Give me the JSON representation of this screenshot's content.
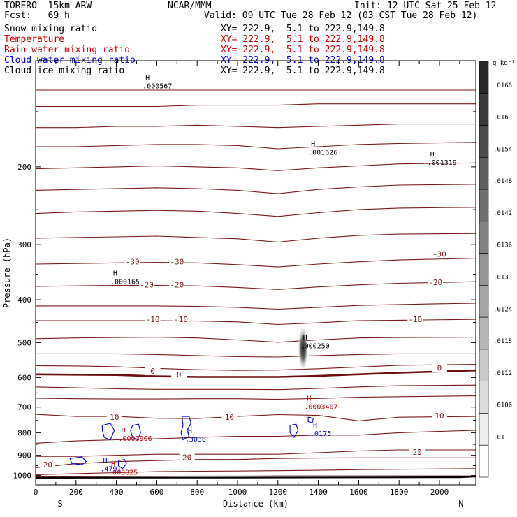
{
  "header": {
    "model": "TORERO  15km ARW",
    "org": "NCAR/MMM",
    "init": "Init: 12 UTC Sat 25 Feb 12",
    "fcst": "Fcst:   69 h",
    "valid": "Valid: 09 UTC Tue 28 Feb 12 (03 CST Tue 28 Feb 12)"
  },
  "legend": [
    {
      "label": "Snow mixing ratio",
      "color": "#000000",
      "xy": "XY= 222.9,  5.1 to 222.9,149.8"
    },
    {
      "label": "Temperature",
      "color": "#cc0000",
      "xy": "XY= 222.9,  5.1 to 222.9,149.8"
    },
    {
      "label": "Rain water mixing ratio",
      "color": "#cc0000",
      "xy": "XY= 222.9,  5.1 to 222.9,149.8"
    },
    {
      "label": "Cloud water mixing ratio",
      "color": "#0000cc",
      "xy": "XY= 222.9,  5.1 to 222.9,149.8"
    },
    {
      "label": "Cloud ice mixing ratio",
      "color": "#000000",
      "xy": "XY= 222.9,  5.1 to 222.9,149.8"
    }
  ],
  "colors": {
    "isotherm": "#7a1a1a",
    "isotherm_bold": "#6b0f0f",
    "rain": "#cc0000",
    "cloud_water": "#0000cc",
    "ground": "#000000"
  },
  "chart_data": {
    "type": "cross-section",
    "xlabel": "Distance (km)",
    "ylabel": "Pressure (hPa)",
    "xlim": [
      0,
      2180
    ],
    "ylim": [
      1050,
      115
    ],
    "y_scale": "log",
    "x_ticks": [
      0,
      200,
      400,
      600,
      800,
      1000,
      1200,
      1400,
      1600,
      1800,
      2000
    ],
    "y_ticks": [
      200,
      300,
      400,
      500,
      600,
      700,
      800,
      900,
      1000
    ],
    "x_end_labels": {
      "left": "S",
      "right": "N"
    },
    "isotherm_labels": [
      {
        "x": 480,
        "p": 328,
        "value": "-30"
      },
      {
        "x": 700,
        "p": 328,
        "value": "-30"
      },
      {
        "x": 2000,
        "p": 315,
        "value": "-30"
      },
      {
        "x": 550,
        "p": 370,
        "value": "-20"
      },
      {
        "x": 700,
        "p": 370,
        "value": "-20"
      },
      {
        "x": 1980,
        "p": 365,
        "value": "-20"
      },
      {
        "x": 580,
        "p": 443,
        "value": "-10"
      },
      {
        "x": 720,
        "p": 443,
        "value": "-10"
      },
      {
        "x": 1880,
        "p": 443,
        "value": "-10"
      },
      {
        "x": 580,
        "p": 580,
        "value": "0"
      },
      {
        "x": 710,
        "p": 590,
        "value": "0"
      },
      {
        "x": 2000,
        "p": 570,
        "value": "0"
      },
      {
        "x": 390,
        "p": 737,
        "value": "10"
      },
      {
        "x": 960,
        "p": 737,
        "value": "10"
      },
      {
        "x": 2000,
        "p": 732,
        "value": "10"
      },
      {
        "x": 750,
        "p": 909,
        "value": "20"
      },
      {
        "x": 1890,
        "p": 885,
        "value": "20"
      },
      {
        "x": 60,
        "p": 945,
        "value": "20"
      }
    ],
    "extrema": [
      {
        "x": 530,
        "p": 128,
        "mark": "H",
        "value": ".000567",
        "color": "#000000"
      },
      {
        "x": 1350,
        "p": 181,
        "mark": "H",
        "value": ".001626",
        "color": "#000000"
      },
      {
        "x": 1940,
        "p": 191,
        "mark": "H",
        "value": ".001319",
        "color": "#000000"
      },
      {
        "x": 370,
        "p": 355,
        "mark": "H",
        "value": ".000165",
        "color": "#000000"
      },
      {
        "x": 1310,
        "p": 497,
        "mark": "H",
        "value": ".000250",
        "color": "#000000"
      },
      {
        "x": 1330,
        "p": 682,
        "mark": "H",
        "value": ".0003407",
        "color": "#cc0000"
      },
      {
        "x": 410,
        "p": 805,
        "mark": "H",
        "value": ".0003906",
        "color": "#cc0000"
      },
      {
        "x": 740,
        "p": 808,
        "mark": "H",
        "value": ".3038",
        "color": "#0000cc"
      },
      {
        "x": 1360,
        "p": 784,
        "mark": "H",
        "value": ".0175",
        "color": "#0000cc"
      },
      {
        "x": 320,
        "p": 943,
        "mark": "H",
        "value": ".4791",
        "color": "#0000cc"
      },
      {
        "x": 360,
        "p": 960,
        "mark": "H",
        "value": ".000825",
        "color": "#cc0000"
      }
    ],
    "isotherms": [
      {
        "p": [
          134,
          134,
          134,
          134,
          134,
          134,
          134,
          134,
          134,
          134,
          134
        ],
        "bold": false
      },
      {
        "p": [
          146,
          146,
          146,
          146,
          145,
          145,
          145,
          144,
          144,
          144,
          144
        ],
        "bold": false
      },
      {
        "p": [
          163,
          163,
          162,
          162,
          161,
          162,
          163,
          162,
          161,
          160,
          160
        ],
        "bold": false
      },
      {
        "p": [
          180,
          180,
          179,
          178,
          178,
          179,
          182,
          180,
          178,
          177,
          176
        ],
        "bold": false
      },
      {
        "p": [
          202,
          201,
          200,
          199,
          200,
          201,
          204,
          201,
          199,
          197,
          196
        ],
        "bold": false
      },
      {
        "p": [
          226,
          225,
          224,
          223,
          224,
          226,
          230,
          225,
          222,
          220,
          219
        ],
        "bold": false
      },
      {
        "p": [
          255,
          253,
          252,
          251,
          252,
          255,
          259,
          254,
          250,
          248,
          247
        ],
        "bold": false
      },
      {
        "p": [
          290,
          289,
          288,
          287,
          289,
          291,
          296,
          290,
          286,
          284,
          283
        ],
        "bold": false
      },
      {
        "p": [
          332,
          331,
          330,
          329,
          330,
          333,
          337,
          332,
          328,
          325,
          322
        ],
        "bold": false
      },
      {
        "p": [
          373,
          372,
          371,
          371,
          372,
          375,
          379,
          374,
          370,
          367,
          364
        ],
        "bold": false
      },
      {
        "p": [
          413,
          413,
          413,
          413,
          414,
          416,
          420,
          416,
          412,
          410,
          407
        ],
        "bold": false
      },
      {
        "p": [
          446,
          446,
          446,
          446,
          447,
          449,
          455,
          451,
          446,
          445,
          443
        ],
        "bold": false
      },
      {
        "p": [
          490,
          488,
          487,
          486,
          488,
          493,
          499,
          493,
          488,
          487,
          486
        ],
        "bold": false
      },
      {
        "p": [
          530,
          530,
          530,
          532,
          535,
          538,
          539,
          535,
          532,
          530,
          530
        ],
        "bold": false
      },
      {
        "p": [
          564,
          565,
          567,
          572,
          576,
          578,
          577,
          573,
          568,
          563,
          560
        ],
        "bold": false
      },
      {
        "p": [
          590,
          591,
          592,
          596,
          598,
          598,
          598,
          595,
          590,
          585,
          578
        ],
        "bold": true
      },
      {
        "p": [
          630,
          633,
          636,
          638,
          638,
          638,
          639,
          635,
          630,
          626,
          624
        ],
        "bold": false
      },
      {
        "p": [
          668,
          670,
          671,
          671,
          670,
          670,
          672,
          669,
          665,
          663,
          660
        ],
        "bold": false
      },
      {
        "p": [
          727,
          735,
          735,
          742,
          743,
          735,
          728,
          731,
          752,
          738,
          735
        ],
        "bold": false
      },
      {
        "p": [
          845,
          835,
          830,
          826,
          820,
          815,
          815,
          810,
          810,
          800,
          790
        ],
        "bold": false
      },
      {
        "p": [
          905,
          905,
          900,
          895,
          895,
          895,
          895,
          888,
          880,
          875,
          875
        ],
        "bold": false
      },
      {
        "p": [
          960,
          940,
          930,
          925,
          920,
          920,
          915,
          913,
          912,
          912,
          912
        ],
        "bold": false
      },
      {
        "p": [
          996,
          990,
          985,
          980,
          978,
          977,
          975,
          973,
          970,
          968,
          965
        ],
        "bold": false
      },
      {
        "p": [
          1007,
          1006,
          1005,
          1004,
          1003,
          1003,
          1002,
          1002,
          1002,
          1002,
          1002
        ],
        "bold": false
      }
    ],
    "isotherm_x": [
      0,
      200,
      400,
      600,
      800,
      1000,
      1200,
      1400,
      1600,
      1800,
      2180
    ],
    "ground": {
      "x": [
        0,
        1000,
        2100,
        2180
      ],
      "p": [
        1012,
        1011,
        1009,
        1005
      ]
    },
    "colorbar": {
      "unit": "g kg⁻¹",
      "labels": [
        ".0166",
        ".016",
        ".0154",
        ".0148",
        ".0142",
        ".0136",
        ".013",
        ".0124",
        ".0118",
        ".0112",
        ".0106",
        ".01"
      ]
    }
  }
}
